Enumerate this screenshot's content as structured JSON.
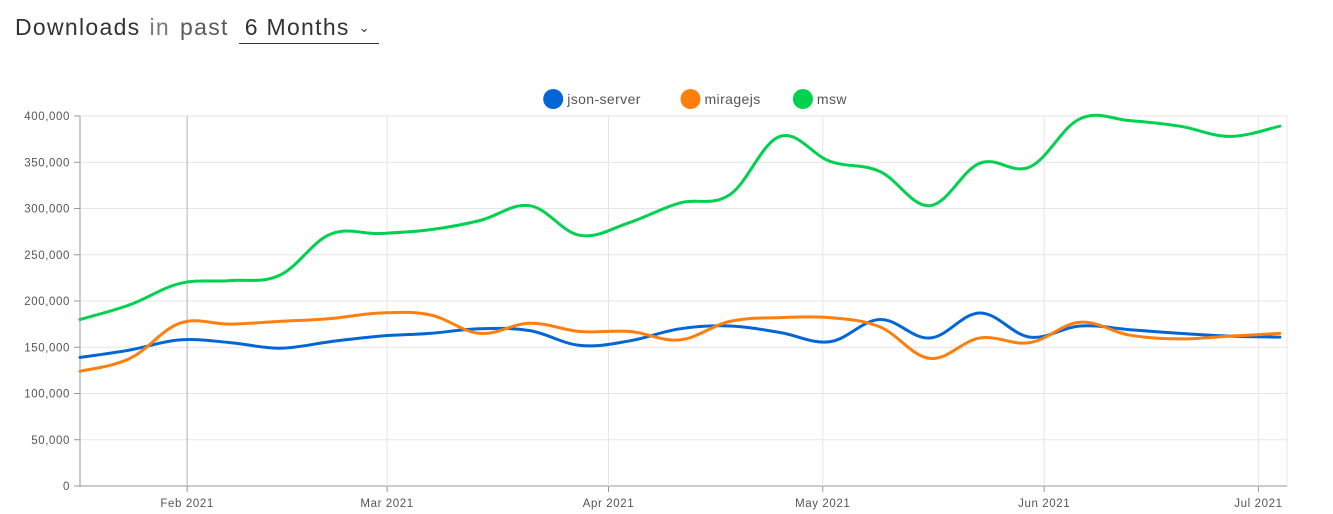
{
  "header": {
    "title": "Downloads",
    "in": "in",
    "past": "past",
    "range_value": "6 Months",
    "range_icon": "chevron-down-icon"
  },
  "chart_data": {
    "type": "line",
    "title": "",
    "xlabel": "",
    "ylabel": "",
    "grid": true,
    "legend_position": "top-center",
    "ylim": [
      0,
      400000
    ],
    "y_ticks": [
      "0",
      "50,000",
      "100,000",
      "150,000",
      "200,000",
      "250,000",
      "300,000",
      "350,000",
      "400,000"
    ],
    "y_tick_values": [
      0,
      50000,
      100000,
      150000,
      200000,
      250000,
      300000,
      350000,
      400000
    ],
    "x_ticks": [
      {
        "label": "Feb 2021",
        "date": "2021-02-01"
      },
      {
        "label": "Mar 2021",
        "date": "2021-03-01"
      },
      {
        "label": "Apr 2021",
        "date": "2021-04-01"
      },
      {
        "label": "May 2021",
        "date": "2021-05-01"
      },
      {
        "label": "Jun 2021",
        "date": "2021-06-01"
      },
      {
        "label": "Jul 2021",
        "date": "2021-07-01"
      }
    ],
    "x_start": "2021-01-17",
    "x_end": "2021-07-05",
    "x": [
      "2021-01-17",
      "2021-01-24",
      "2021-01-31",
      "2021-02-07",
      "2021-02-14",
      "2021-02-21",
      "2021-02-28",
      "2021-03-07",
      "2021-03-14",
      "2021-03-21",
      "2021-03-28",
      "2021-04-04",
      "2021-04-11",
      "2021-04-18",
      "2021-04-25",
      "2021-05-02",
      "2021-05-09",
      "2021-05-16",
      "2021-05-23",
      "2021-05-30",
      "2021-06-06",
      "2021-06-13",
      "2021-06-20",
      "2021-06-27",
      "2021-07-04"
    ],
    "series": [
      {
        "name": "json-server",
        "color": "#0366d6",
        "values": [
          139000,
          147000,
          158000,
          155000,
          149000,
          156000,
          162000,
          165000,
          170000,
          168000,
          152000,
          157000,
          170000,
          173000,
          166000,
          156000,
          180000,
          160000,
          187000,
          161000,
          173000,
          169000,
          165000,
          162000,
          161000
        ]
      },
      {
        "name": "miragejs",
        "color": "#ff7f0e",
        "values": [
          124000,
          138000,
          176000,
          175000,
          178000,
          181000,
          187000,
          185000,
          165000,
          176000,
          167000,
          167000,
          158000,
          178000,
          182000,
          182000,
          172000,
          138000,
          160000,
          155000,
          177000,
          163000,
          159000,
          162000,
          165000
        ]
      },
      {
        "name": "msw",
        "color": "#00d14f",
        "values": [
          180000,
          196000,
          219000,
          222000,
          228000,
          272000,
          273000,
          277000,
          287000,
          303000,
          271000,
          285000,
          306000,
          315000,
          378000,
          351000,
          340000,
          303000,
          349000,
          345000,
          397000,
          395000,
          389000,
          378000,
          389000
        ]
      }
    ]
  }
}
